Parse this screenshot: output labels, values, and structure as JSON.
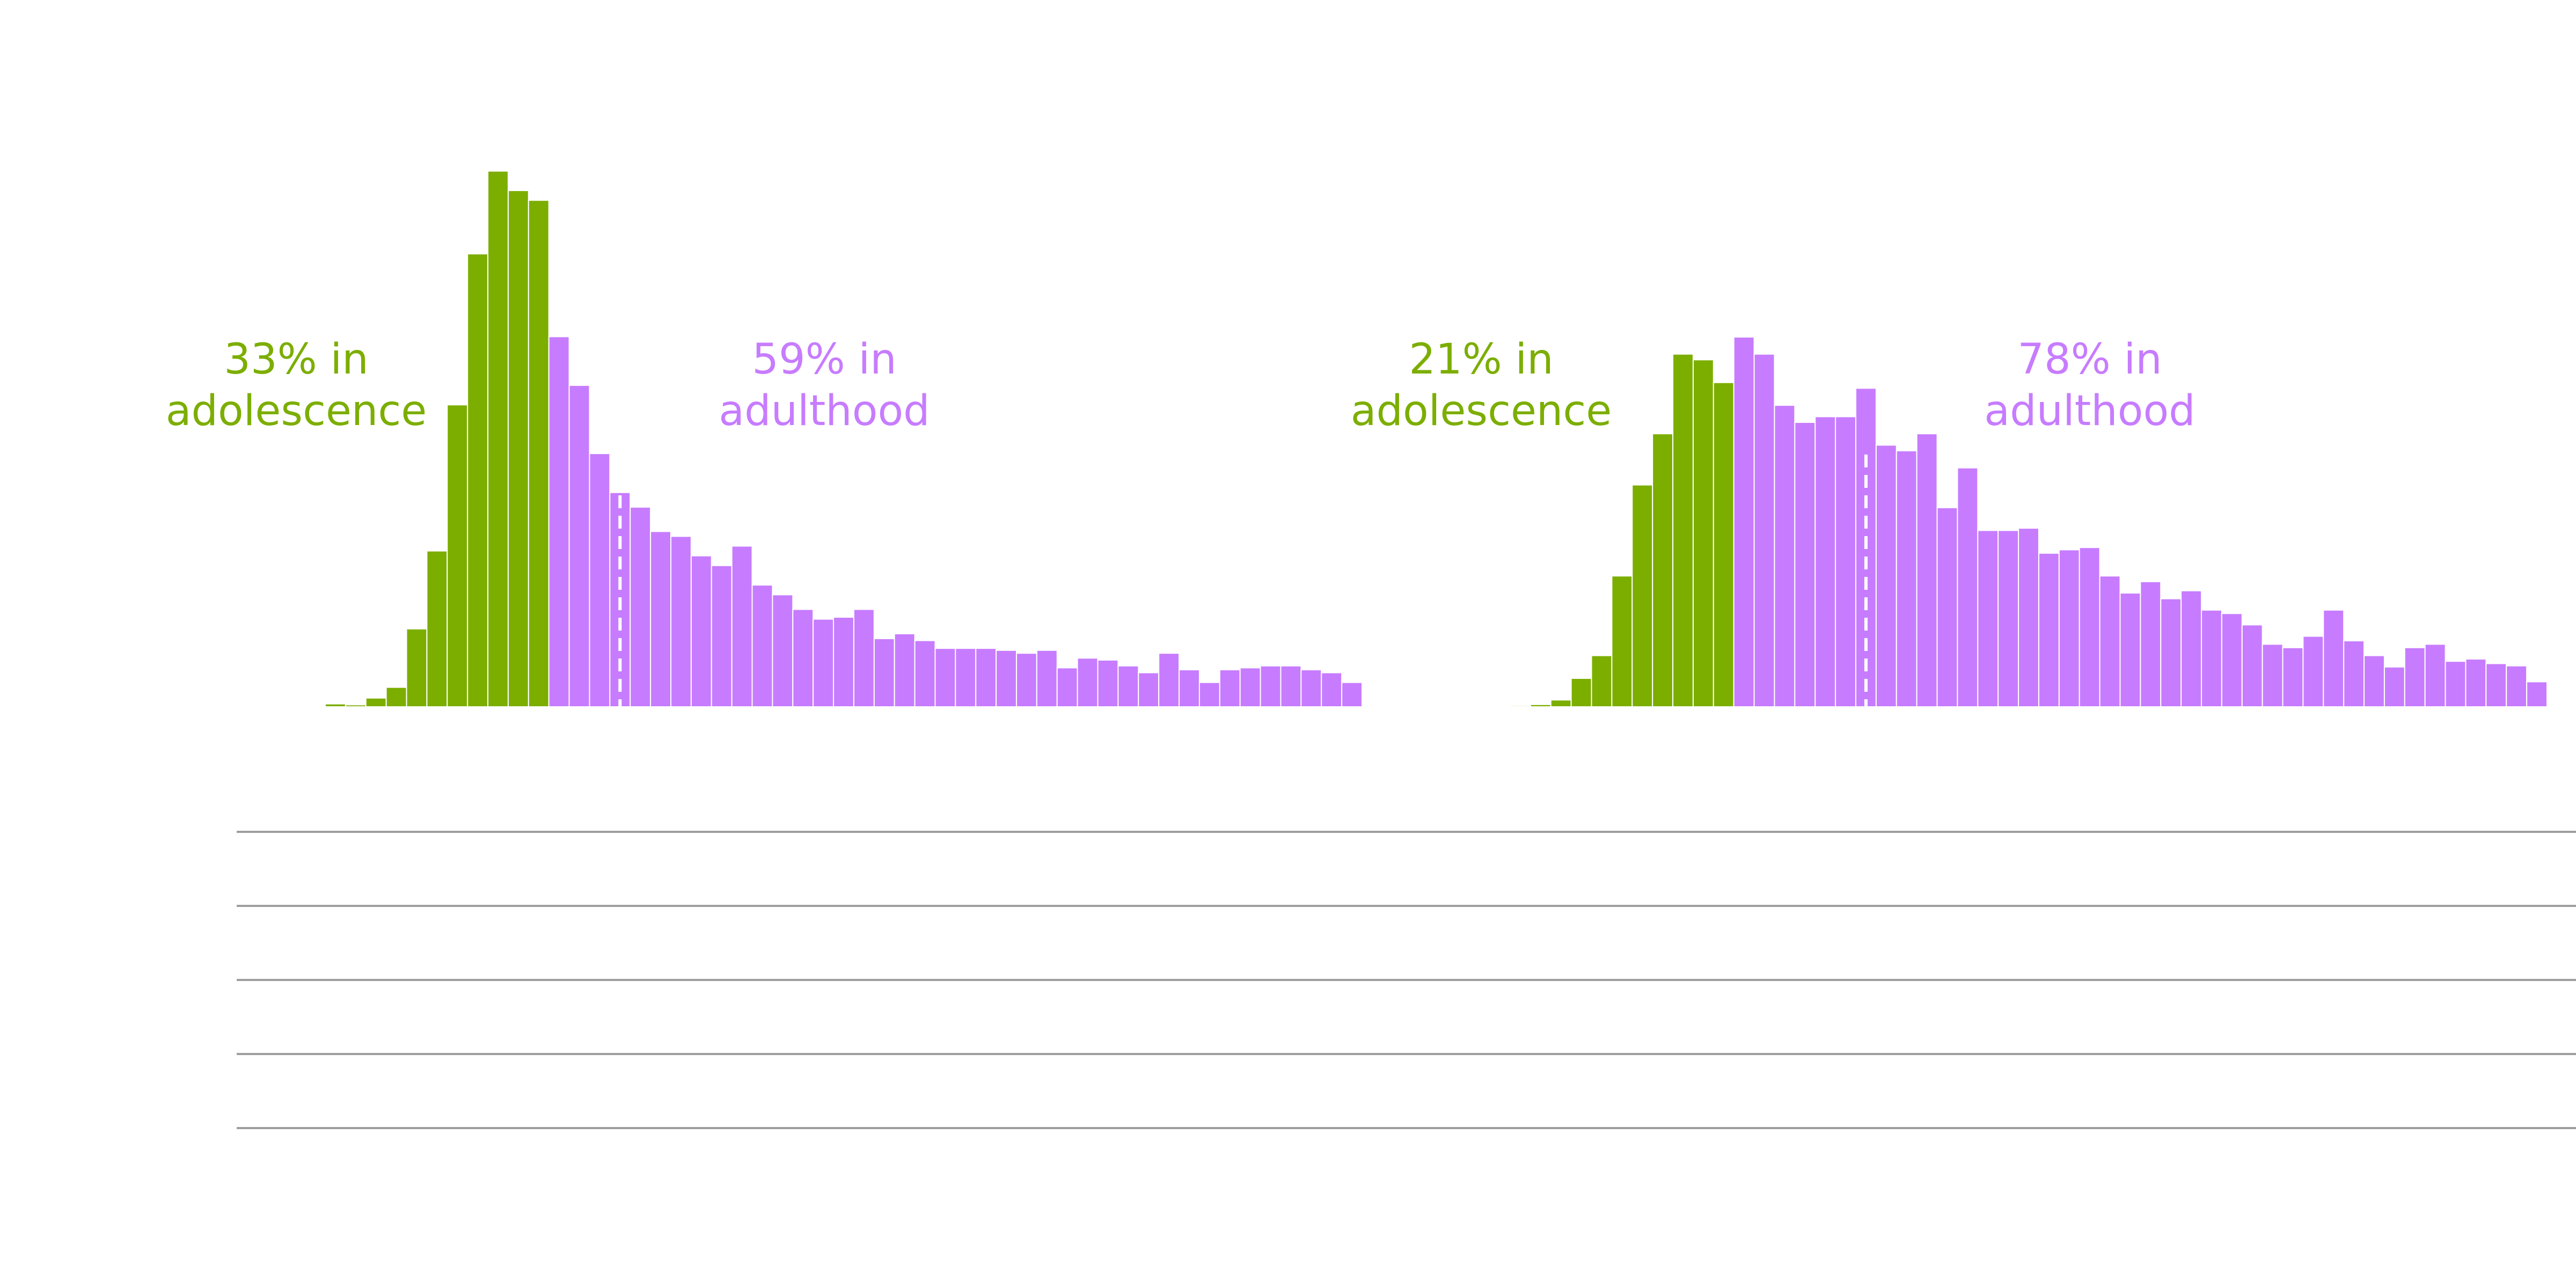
{
  "colors": {
    "adolescence": "#7cae00",
    "adulthood": "#c77cff",
    "background": "#ffffff",
    "rule": "#9e9e9e",
    "median_line": "#ffffff"
  },
  "chart_data": [
    {
      "type": "bar",
      "title": "",
      "xlabel": "",
      "ylabel": "",
      "bin_count": 51,
      "split_after_bin": 10,
      "median_line_after_bin": 14.5,
      "values": [
        0.3,
        0.2,
        0.9,
        2.0,
        8.0,
        16.0,
        31.0,
        46.5,
        55.0,
        53.0,
        52.0,
        38.0,
        33.0,
        26.0,
        22.0,
        20.5,
        18.0,
        17.5,
        15.5,
        14.5,
        16.5,
        12.5,
        11.5,
        10.0,
        9.0,
        9.2,
        10.0,
        7.0,
        7.5,
        6.8,
        6.0,
        6.0,
        6.0,
        5.8,
        5.5,
        5.8,
        4.0,
        5.0,
        4.8,
        4.2,
        3.5,
        5.5,
        3.8,
        2.5,
        3.8,
        4.0,
        4.2,
        4.2,
        3.8,
        3.5,
        2.5
      ],
      "series": [
        {
          "name": "adolescence",
          "bins": [
            0,
            10
          ]
        },
        {
          "name": "adulthood",
          "bins": [
            11,
            50
          ]
        }
      ],
      "annotations": [
        {
          "line1": "33% in",
          "line2": "adolescence",
          "series": "adolescence"
        },
        {
          "line1": "59% in",
          "line2": "adulthood",
          "series": "adulthood"
        }
      ]
    },
    {
      "type": "bar",
      "title": "",
      "xlabel": "",
      "ylabel": "",
      "bin_count": 51,
      "split_after_bin": 10,
      "median_line_after_bin": 17.5,
      "values": [
        0.1,
        0.2,
        0.6,
        2.5,
        4.5,
        11.5,
        19.5,
        24.0,
        31.0,
        30.5,
        28.5,
        32.5,
        31.0,
        26.5,
        25.0,
        25.5,
        25.5,
        28.0,
        23.0,
        22.5,
        24.0,
        17.5,
        21.0,
        15.5,
        15.5,
        15.7,
        13.5,
        13.8,
        14.0,
        11.5,
        10.0,
        11.0,
        9.5,
        10.2,
        8.5,
        8.2,
        7.2,
        5.5,
        5.2,
        6.2,
        8.5,
        5.8,
        4.5,
        3.5,
        5.2,
        5.5,
        4.0,
        4.2,
        3.8,
        3.6,
        2.2
      ],
      "series": [
        {
          "name": "adolescence",
          "bins": [
            0,
            10
          ]
        },
        {
          "name": "adulthood",
          "bins": [
            11,
            50
          ]
        }
      ],
      "annotations": [
        {
          "line1": "21% in",
          "line2": "adolescence",
          "series": "adolescence"
        },
        {
          "line1": "78% in",
          "line2": "adulthood",
          "series": "adulthood"
        }
      ]
    }
  ],
  "rules_count": 5
}
